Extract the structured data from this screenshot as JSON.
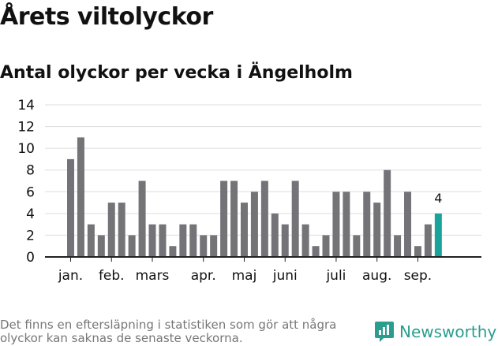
{
  "header": {
    "title": "Årets viltolyckor",
    "subtitle": "Antal olyckor per vecka i Ängelholm"
  },
  "footer": {
    "note": "Det finns en eftersläpning i statistiken som gör att några olyckor kan saknas de senaste veckorna.",
    "brand": "Newsworthy"
  },
  "colors": {
    "bar": "#747378",
    "highlight": "#1aa39a",
    "grid": "#dddddd",
    "brand": "#2a9d8f"
  },
  "chart_data": {
    "type": "bar",
    "title": "Antal olyckor per vecka i Ängelholm",
    "ylim": [
      0,
      14
    ],
    "yticks": [
      0,
      2,
      4,
      6,
      8,
      10,
      12,
      14
    ],
    "grid": true,
    "values": [
      9,
      11,
      3,
      2,
      5,
      5,
      2,
      7,
      3,
      3,
      1,
      3,
      3,
      2,
      2,
      7,
      7,
      5,
      6,
      7,
      4,
      3,
      7,
      3,
      1,
      2,
      6,
      6,
      2,
      6,
      5,
      8,
      2,
      6,
      1,
      3,
      4
    ],
    "highlight_index": 36,
    "highlight_label": "4",
    "month_labels": [
      {
        "label": "jan.",
        "week": 1
      },
      {
        "label": "feb.",
        "week": 5
      },
      {
        "label": "mars",
        "week": 9
      },
      {
        "label": "apr.",
        "week": 14
      },
      {
        "label": "maj",
        "week": 18
      },
      {
        "label": "juni",
        "week": 22
      },
      {
        "label": "juli",
        "week": 27
      },
      {
        "label": "aug.",
        "week": 31
      },
      {
        "label": "sep.",
        "week": 35
      }
    ]
  }
}
